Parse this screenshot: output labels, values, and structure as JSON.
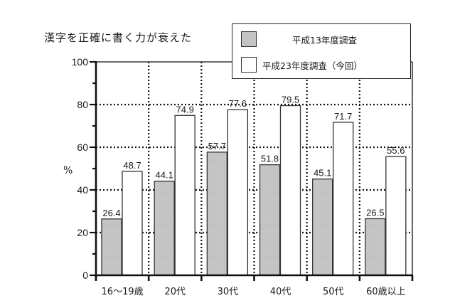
{
  "chart_data": {
    "type": "bar",
    "title": "漢字を正確に書く力が衰えた",
    "xlabel": "",
    "ylabel": "%",
    "ylim": [
      0,
      100
    ],
    "yticks": [
      0,
      20,
      40,
      60,
      80,
      100
    ],
    "grid": "dotted",
    "legend_position": "top-right (overlapping title)",
    "categories": [
      "16〜19歳",
      "20代",
      "30代",
      "40代",
      "50代",
      "60歳以上"
    ],
    "series": [
      {
        "name": "平成13年度調査",
        "color": "#c4c4c4",
        "values": [
          26.4,
          44.1,
          57.7,
          51.8,
          45.1,
          26.5
        ]
      },
      {
        "name": "平成23年度調査（今回）",
        "color": "#ffffff",
        "values": [
          48.7,
          74.9,
          77.6,
          79.5,
          71.7,
          55.6
        ]
      }
    ]
  },
  "legend": {
    "items": [
      {
        "label": "平成13年度調査"
      },
      {
        "label": "平成23年度調査（今回）"
      }
    ]
  }
}
